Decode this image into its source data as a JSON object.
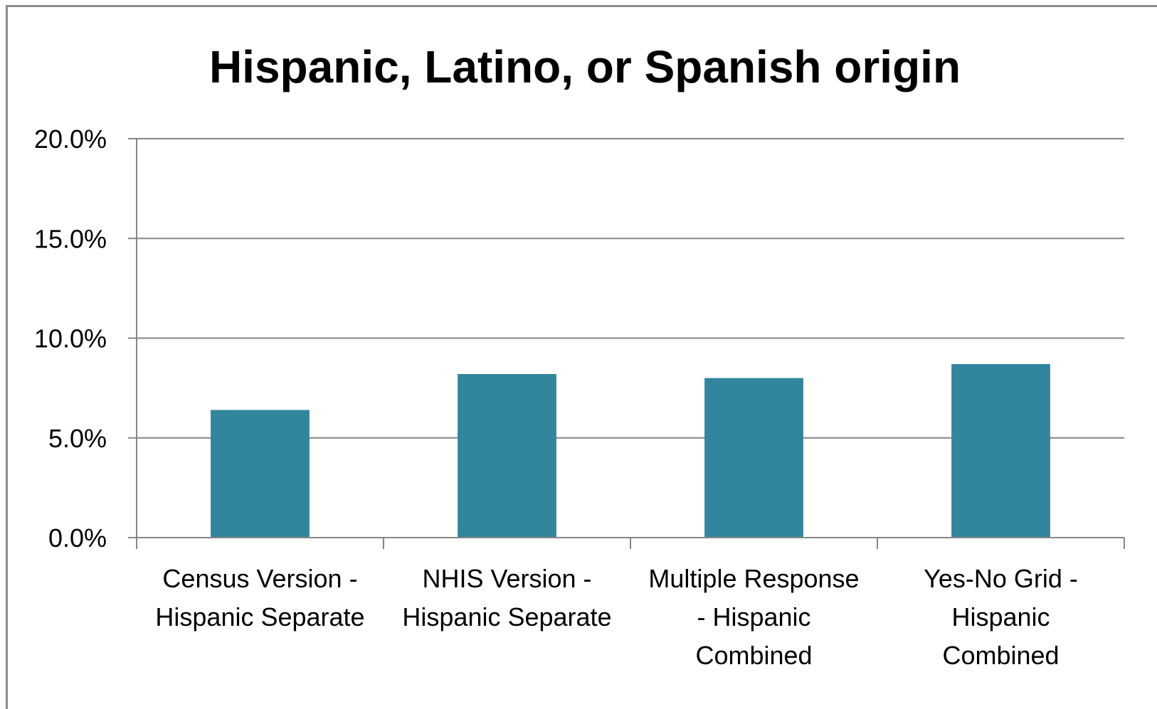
{
  "chart_data": {
    "type": "bar",
    "title": "Hispanic, Latino, or Spanish origin",
    "xlabel": "",
    "ylabel": "",
    "ylim": [
      0,
      20
    ],
    "yticks": [
      "0.0%",
      "5.0%",
      "10.0%",
      "15.0%",
      "20.0%"
    ],
    "ytick_values": [
      0,
      5,
      10,
      15,
      20
    ],
    "categories": [
      [
        "Census Version -",
        "Hispanic Separate"
      ],
      [
        "NHIS Version -",
        "Hispanic Separate"
      ],
      [
        "Multiple Response",
        "- Hispanic",
        "Combined"
      ],
      [
        "Yes-No Grid -",
        "Hispanic",
        "Combined"
      ]
    ],
    "values": [
      6.4,
      8.2,
      8.0,
      8.7
    ],
    "grid": true,
    "legend": "none",
    "bar_color": "#31859c",
    "grid_color": "#868686",
    "axis_color": "#868686"
  }
}
